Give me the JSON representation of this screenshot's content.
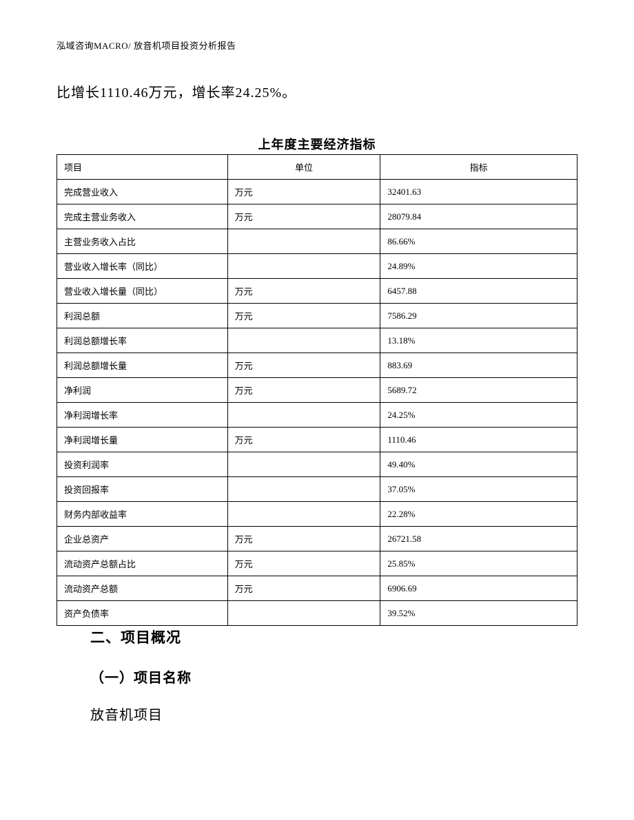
{
  "header_text": "泓域咨询MACRO/    放音机项目投资分析报告",
  "body_text": "比增长1110.46万元，增长率24.25%。",
  "table_title": "上年度主要经济指标",
  "table": {
    "columns": [
      "项目",
      "单位",
      "指标"
    ],
    "rows": [
      [
        "完成营业收入",
        "万元",
        "32401.63"
      ],
      [
        "完成主营业务收入",
        "万元",
        "28079.84"
      ],
      [
        "主营业务收入占比",
        "",
        "86.66%"
      ],
      [
        "营业收入增长率（同比）",
        "",
        "24.89%"
      ],
      [
        "营业收入增长量（同比）",
        "万元",
        "6457.88"
      ],
      [
        "利润总额",
        "万元",
        "7586.29"
      ],
      [
        "利润总额增长率",
        "",
        "13.18%"
      ],
      [
        "利润总额增长量",
        "万元",
        "883.69"
      ],
      [
        "净利润",
        "万元",
        "5689.72"
      ],
      [
        "净利润增长率",
        "",
        "24.25%"
      ],
      [
        "净利润增长量",
        "万元",
        "1110.46"
      ],
      [
        "投资利润率",
        "",
        "49.40%"
      ],
      [
        "投资回报率",
        "",
        "37.05%"
      ],
      [
        "财务内部收益率",
        "",
        "22.28%"
      ],
      [
        "企业总资产",
        "万元",
        "26721.58"
      ],
      [
        "流动资产总额占比",
        "万元",
        "25.85%"
      ],
      [
        "流动资产总额",
        "万元",
        "6906.69"
      ],
      [
        "资产负债率",
        "",
        "39.52%"
      ]
    ]
  },
  "section_two_heading": "二、项目概况",
  "sub_heading": "（一）项目名称",
  "project_name_text": "放音机项目"
}
